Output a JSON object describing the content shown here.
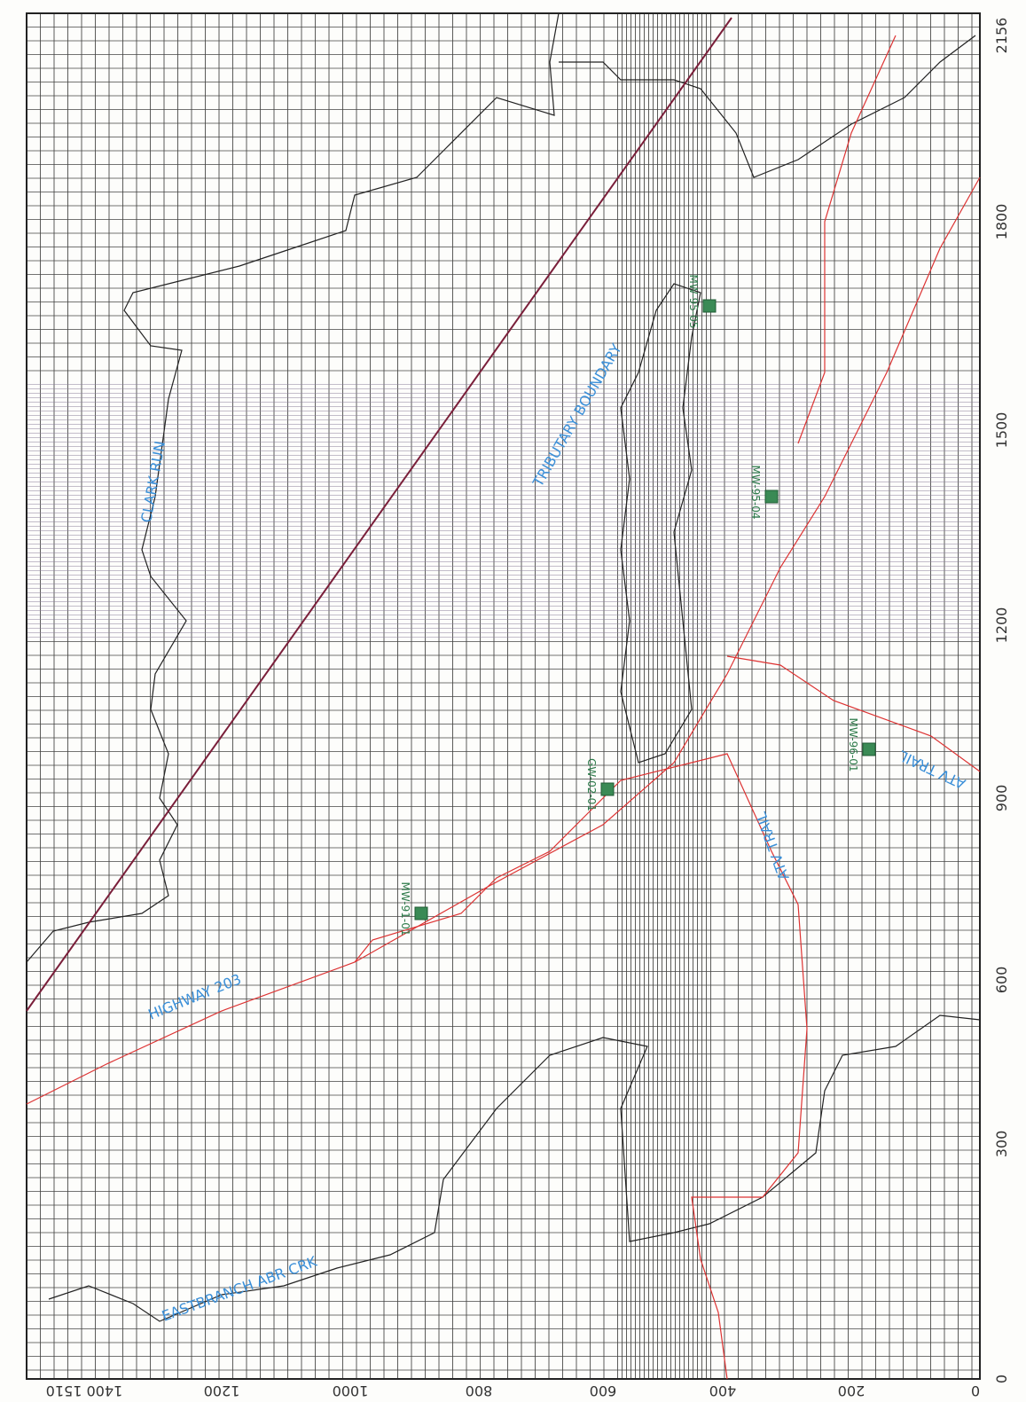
{
  "axes": {
    "right_ticks": [
      "0",
      "300",
      "600",
      "900",
      "1200",
      "1500",
      "1800",
      "2156"
    ],
    "bottom_ticks": [
      "0",
      "200",
      "400",
      "600",
      "800",
      "1000",
      "1200",
      "1400 1510"
    ]
  },
  "labels": {
    "highway": "HIGHWAY 203",
    "creek": "EASTBRANCH ABR CRK",
    "boundary": "TRIBUTARY BOUNDARY",
    "clark": "CLARK RUN",
    "trail_1": "ATV TRAIL",
    "trail_2": "ATV TRAIL"
  },
  "wells": [
    "MW-91-01",
    "GW-02-01",
    "MW-96-01",
    "MW-95-04",
    "MW-95-05"
  ]
}
